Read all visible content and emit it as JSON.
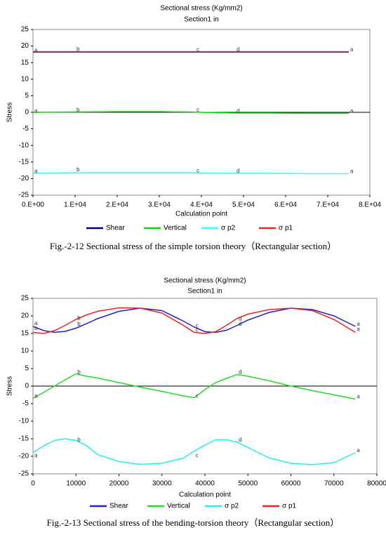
{
  "chart_data": [
    {
      "type": "line",
      "title": "Sectional stress (Kg/mm2)",
      "subtitle": "Section1 in",
      "x_label": "Calculation point",
      "y_label": "Stress",
      "caption": "Fig.-2-12 Sectional stress of the simple torsion theory（Rectangular section）",
      "xlim": [
        0,
        80000
      ],
      "xticks": [
        {
          "value": 0,
          "label": "0.E+00"
        },
        {
          "value": 10000,
          "label": "1.E+04"
        },
        {
          "value": 20000,
          "label": "2.E+04"
        },
        {
          "value": 30000,
          "label": "3.E+04"
        },
        {
          "value": 40000,
          "label": "4.E+04"
        },
        {
          "value": 50000,
          "label": "5.E+04"
        },
        {
          "value": 60000,
          "label": "6.E+04"
        },
        {
          "value": 70000,
          "label": "7.E+04"
        },
        {
          "value": 80000,
          "label": "8.E+04"
        }
      ],
      "ylim": [
        -25,
        25
      ],
      "yticks": [
        -25,
        -20,
        -15,
        -10,
        -5,
        0,
        5,
        10,
        15,
        20,
        25
      ],
      "x": [
        0,
        10000,
        20000,
        30000,
        37500,
        40000,
        47500,
        55000,
        65000,
        75000
      ],
      "series": [
        {
          "name": "Shear",
          "color": "#000080",
          "values": [
            18.2,
            18.2,
            18.2,
            18.2,
            18.2,
            18.2,
            18.2,
            18.2,
            18.2,
            18.2
          ]
        },
        {
          "name": "Vertical",
          "color": "#00dd00",
          "values": [
            0,
            0.1,
            0.2,
            0.2,
            0.1,
            0,
            -0.2,
            -0.2,
            -0.3,
            -0.3
          ]
        },
        {
          "name": "σ p2",
          "color": "#33ffff",
          "values": [
            -18.4,
            -18.2,
            -18.2,
            -18.2,
            -18.2,
            -18.3,
            -18.4,
            -18.4,
            -18.5,
            -18.5
          ]
        },
        {
          "name": "σ p1",
          "color": "#ee2222",
          "values": [
            18.3,
            18.3,
            18.3,
            18.3,
            18.3,
            18.3,
            18.3,
            18.3,
            18.3,
            18.3
          ]
        }
      ],
      "annotations": [
        {
          "text": "a",
          "x": 0,
          "y": 18
        },
        {
          "text": "b",
          "x": 10000,
          "y": 18.3
        },
        {
          "text": "c",
          "x": 38500,
          "y": 18.2
        },
        {
          "text": "d",
          "x": 48000,
          "y": 18.2
        },
        {
          "text": "a",
          "x": 75000,
          "y": 18.2
        },
        {
          "text": "a",
          "x": 0,
          "y": -0.3
        },
        {
          "text": "b",
          "x": 10000,
          "y": 0
        },
        {
          "text": "c",
          "x": 38500,
          "y": 0
        },
        {
          "text": "d",
          "x": 48000,
          "y": -0.3
        },
        {
          "text": "a",
          "x": 75000,
          "y": -0.3
        },
        {
          "text": "a",
          "x": 0,
          "y": -18.4
        },
        {
          "text": "b",
          "x": 10000,
          "y": -18
        },
        {
          "text": "c",
          "x": 38500,
          "y": -18.3
        },
        {
          "text": "d",
          "x": 48000,
          "y": -18.4
        },
        {
          "text": "a",
          "x": 75000,
          "y": -18.5
        }
      ]
    },
    {
      "type": "line",
      "title": "Sectional stress (Kg/mm2)",
      "subtitle": "Section1 in",
      "x_label": "Calculation point",
      "y_label": "Stress",
      "caption": "Fig.-2-13 Sectional stress of the bending-torsion theory（Rectangular section）",
      "xlim": [
        0,
        80000
      ],
      "xticks": [
        0,
        10000,
        20000,
        30000,
        40000,
        50000,
        60000,
        70000,
        80000
      ],
      "ylim": [
        -25,
        25
      ],
      "yticks": [
        -25,
        -20,
        -15,
        -10,
        -5,
        0,
        5,
        10,
        15,
        20,
        25
      ],
      "x": [
        0,
        2500,
        5000,
        7500,
        10000,
        12500,
        15000,
        20000,
        25000,
        30000,
        35000,
        37500,
        40000,
        42500,
        45000,
        47500,
        50000,
        55000,
        60000,
        65000,
        70000,
        75000
      ],
      "series": [
        {
          "name": "Shear",
          "color": "#2222cc",
          "values": [
            17,
            15.8,
            15.3,
            15.6,
            16.5,
            17.8,
            19.2,
            21.3,
            22.2,
            21.5,
            18.5,
            16.8,
            15.5,
            15.3,
            15.9,
            17.3,
            18.8,
            21,
            22.2,
            21.8,
            20,
            17
          ]
        },
        {
          "name": "Vertical",
          "color": "#22dd22",
          "values": [
            -3.5,
            -1.8,
            0,
            1.8,
            3.5,
            2.8,
            2.3,
            1,
            -0.3,
            -1.5,
            -2.8,
            -3.3,
            -1,
            1,
            2.2,
            3.3,
            2.8,
            1.5,
            0,
            -1.3,
            -2.5,
            -3.7
          ]
        },
        {
          "name": "σ p2",
          "color": "#22eeee",
          "values": [
            -19,
            -17,
            -15.5,
            -15,
            -15.5,
            -17,
            -19.5,
            -21.5,
            -22.3,
            -22,
            -20.5,
            -18.5,
            -16.8,
            -15.3,
            -15.3,
            -16,
            -17.5,
            -20.5,
            -22,
            -22.4,
            -21.8,
            -19
          ]
        },
        {
          "name": "σ p1",
          "color": "#ee2222",
          "values": [
            15.3,
            15,
            15.8,
            17.3,
            19,
            20.3,
            21.3,
            22.3,
            22.2,
            20.8,
            17.3,
            15.3,
            15,
            15.5,
            17.3,
            19.3,
            20.5,
            21.8,
            22.2,
            21.5,
            19,
            15.3
          ]
        }
      ],
      "annotations": [
        {
          "text": "a",
          "x": 0,
          "y": 17.2
        },
        {
          "text": "a",
          "x": 0,
          "y": 15.8
        },
        {
          "text": "b",
          "x": 10000,
          "y": 18.7
        },
        {
          "text": "b",
          "x": 10000,
          "y": 17
        },
        {
          "text": "c",
          "x": 37500,
          "y": 16.5
        },
        {
          "text": "c",
          "x": 37500,
          "y": 15.3
        },
        {
          "text": "d",
          "x": 47500,
          "y": 18.5
        },
        {
          "text": "d",
          "x": 47500,
          "y": 17
        },
        {
          "text": "a",
          "x": 75000,
          "y": 17
        },
        {
          "text": "a",
          "x": 75000,
          "y": 15.5
        },
        {
          "text": "a",
          "x": 0,
          "y": -3.5
        },
        {
          "text": "b",
          "x": 10000,
          "y": 3.3
        },
        {
          "text": "c",
          "x": 37500,
          "y": -3.5
        },
        {
          "text": "d",
          "x": 47500,
          "y": 3.3
        },
        {
          "text": "a",
          "x": 75000,
          "y": -3.7
        },
        {
          "text": "a",
          "x": 0,
          "y": -20.5
        },
        {
          "text": "b",
          "x": 10000,
          "y": -16
        },
        {
          "text": "c",
          "x": 37500,
          "y": -20.5
        },
        {
          "text": "d",
          "x": 47500,
          "y": -16
        },
        {
          "text": "a",
          "x": 75000,
          "y": -19
        }
      ]
    }
  ]
}
